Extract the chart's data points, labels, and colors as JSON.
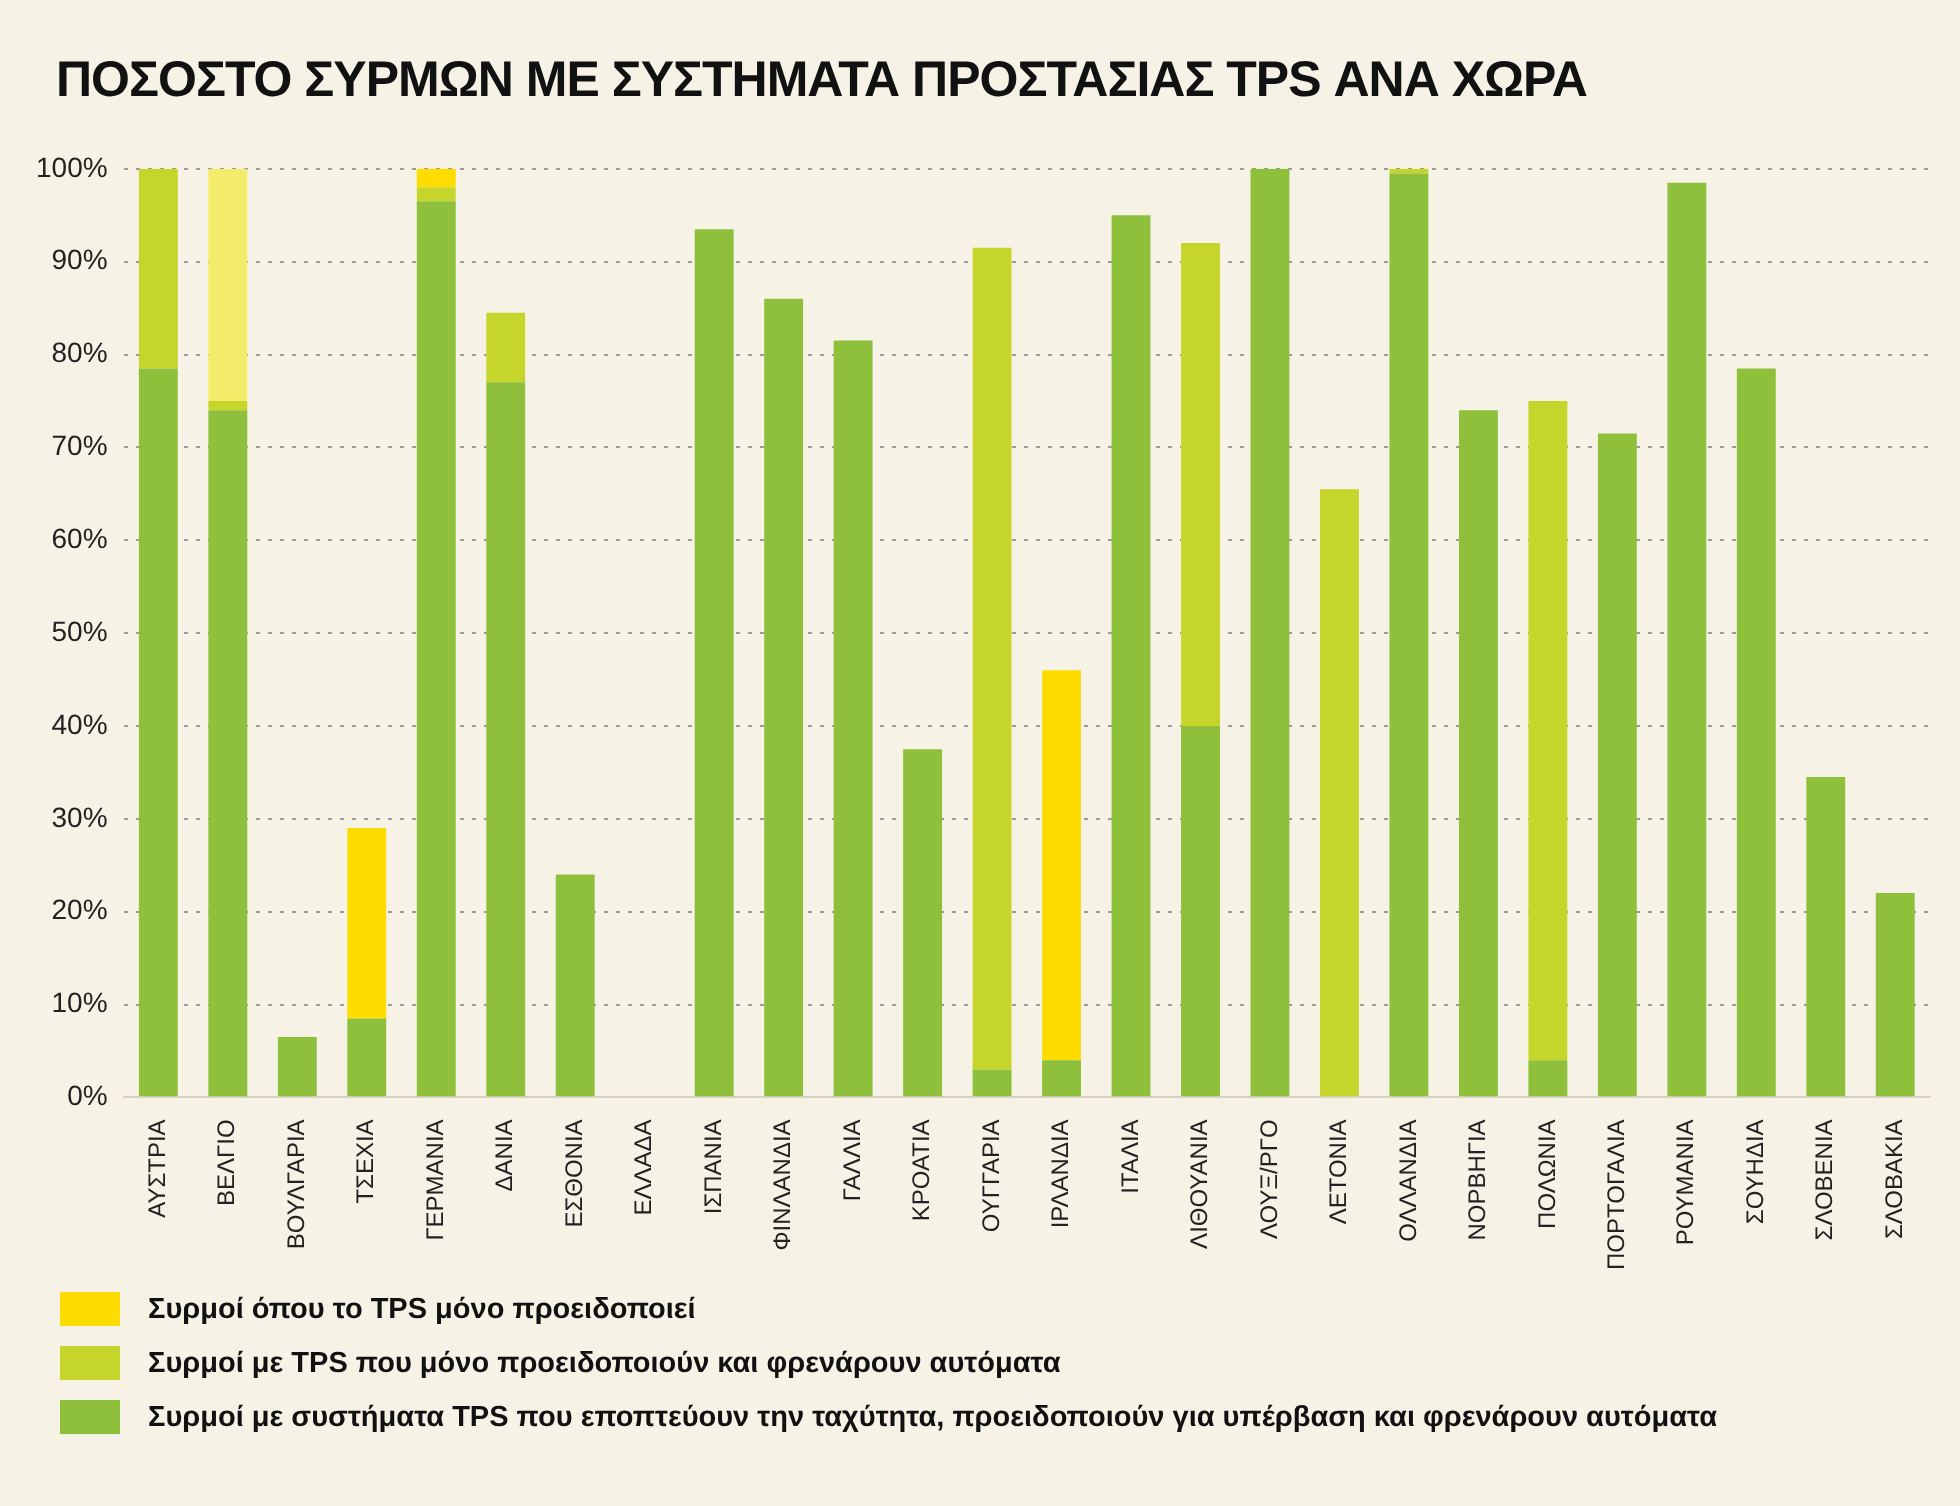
{
  "chart_data": {
    "type": "bar",
    "title": "ΠΟΣΟΣΤΟ ΣΥΡΜΩΝ ΜΕ ΣΥΣΤΗΜΑΤΑ ΠΡΟΣΤΑΣΙΑΣ TPS ΑΝΑ ΧΩΡΑ",
    "categories": [
      "ΑΥΣΤΡΙΑ",
      "ΒΕΛΓΙΟ",
      "ΒΟΥΛΓΑΡΙΑ",
      "ΤΣΕΧΙΑ",
      "ΓΕΡΜΑΝΙΑ",
      "ΔΑΝΙΑ",
      "ΕΣΘΟΝΙΑ",
      "ΕΛΛΑΔΑ",
      "ΙΣΠΑΝΙΑ",
      "ΦΙΝΛΑΝΔΙΑ",
      "ΓΑΛΛΙΑ",
      "ΚΡΟΑΤΙΑ",
      "ΟΥΓΓΑΡΙΑ",
      "ΙΡΛΑΝΔΙΑ",
      "ΙΤΑΛΙΑ",
      "ΛΙΘΟΥΑΝΙΑ",
      "ΛΟΥΞ/ΡΓΟ",
      "ΛΕΤΟΝΙΑ",
      "ΟΛΛΑΝΔΙΑ",
      "ΝΟΡΒΗΓΙΑ",
      "ΠΟΛΩΝΙΑ",
      "ΠΟΡΤΟΓΑΛΙΑ",
      "ΡΟΥΜΑΝΙΑ",
      "ΣΟΥΗΔΙΑ",
      "ΣΛΟΒΕΝΙΑ",
      "ΣΛΟΒΑΚΙΑ"
    ],
    "stacked": true,
    "series": [
      {
        "name": "Συρμοί με συστήματα TPS που εποπτεύουν την ταχύτητα, προειδοποιούν για υπέρβαση και φρενάρουν αυτόματα",
        "color": "#8fc03c",
        "values": [
          78.5,
          74,
          6.5,
          8.5,
          96.5,
          77,
          24,
          null,
          93.5,
          86,
          81.5,
          37.5,
          3,
          4,
          95,
          40,
          100,
          null,
          99.5,
          74,
          4,
          71.5,
          98.5,
          78.5,
          34.5,
          22
        ]
      },
      {
        "name": "Συρμοί με TPS που μόνο προειδοποιούν και φρενάρουν αυτόματα",
        "color": "#c6d52c",
        "values": [
          21.5,
          1,
          null,
          null,
          1.5,
          7.5,
          null,
          null,
          null,
          null,
          null,
          null,
          88.5,
          null,
          null,
          52,
          null,
          65.5,
          0.5,
          null,
          71,
          null,
          null,
          null,
          null,
          null
        ]
      },
      {
        "name": "Συρμοί όπου το TPS μόνο προειδοποιεί",
        "color": "#ffdc00",
        "colors": [
          "#ffdc00",
          "#f2ec6a",
          "#ffdc00",
          "#ffdc00",
          "#ffdc00",
          "#ffdc00",
          "#ffdc00",
          "#ffdc00",
          "#ffdc00",
          "#ffdc00",
          "#ffdc00",
          "#ffdc00",
          "#ffdc00",
          "#ffdc00",
          "#ffdc00",
          "#ffdc00",
          "#ffdc00",
          "#ffdc00",
          "#ffdc00",
          "#ffdc00",
          "#ffdc00",
          "#ffdc00",
          "#ffdc00",
          "#ffdc00",
          "#ffdc00",
          "#ffdc00"
        ],
        "values": [
          null,
          25,
          null,
          20.5,
          2,
          null,
          null,
          null,
          null,
          null,
          null,
          null,
          null,
          42,
          null,
          null,
          null,
          null,
          null,
          null,
          null,
          null,
          null,
          null,
          null,
          null
        ]
      }
    ],
    "ylim": [
      0,
      100
    ],
    "yticks": [
      {
        "value": 0,
        "label": "0%"
      },
      {
        "value": 10,
        "label": "10%"
      },
      {
        "value": 20,
        "label": "20%"
      },
      {
        "value": 30,
        "label": "30%"
      },
      {
        "value": 40,
        "label": "40%"
      },
      {
        "value": 50,
        "label": "50%"
      },
      {
        "value": 60,
        "label": "60%"
      },
      {
        "value": 70,
        "label": "70%"
      },
      {
        "value": 80,
        "label": "80%"
      },
      {
        "value": 90,
        "label": "90%"
      },
      {
        "value": 100,
        "label": "100%"
      }
    ],
    "grid": "y",
    "legend": "bottom"
  }
}
